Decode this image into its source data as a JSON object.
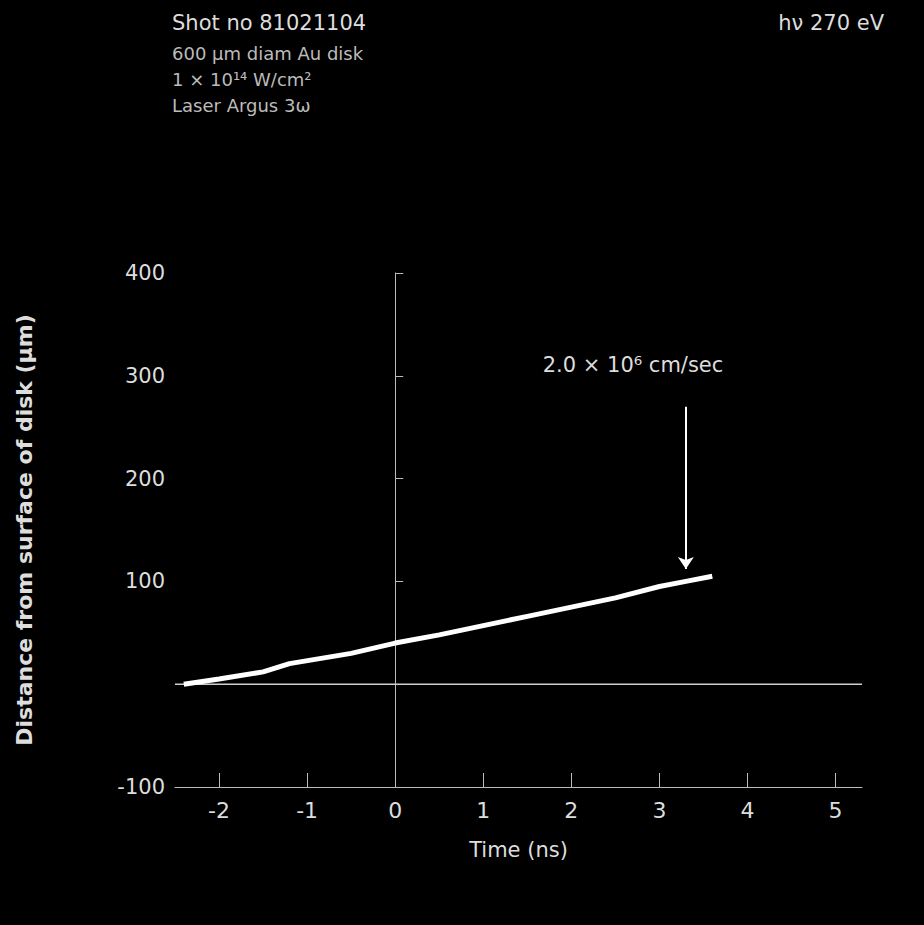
{
  "chart_data": {
    "type": "line",
    "title": "Shot no 81021104",
    "subtitle": "hν 270 eV",
    "notes": [
      "600 μm diam Au disk",
      "1 × 10¹⁴ W/cm²",
      "Laser Argus 3ω"
    ],
    "x_label": "Time (ns)",
    "y_label": "Distance from surface of disk (μm)",
    "xlim": [
      -2.5,
      5.3
    ],
    "xticks": [
      {
        "value": -2,
        "label": "-2"
      },
      {
        "value": -1,
        "label": "-1"
      },
      0,
      1,
      2,
      3,
      4,
      5
    ],
    "ylim": [
      -100,
      400
    ],
    "yticks": [
      -100,
      100,
      200,
      300,
      400
    ],
    "grid": false,
    "series": [
      {
        "x": [
          -2.4,
          -2.0,
          -1.5,
          -1.2,
          -0.5,
          0,
          0.5,
          1,
          1.5,
          2,
          2.5,
          3,
          3.3,
          3.6
        ],
        "values": [
          0,
          5,
          12,
          20,
          30,
          40,
          48,
          57,
          66,
          75,
          84,
          95,
          100,
          105
        ],
        "color": "#ffffff",
        "line_style": "solid"
      },
      {
        "x": [
          -2.5,
          5.3
        ],
        "values": [
          0,
          0
        ],
        "color": "#cfcfcf",
        "line_style": "solid"
      }
    ],
    "annotation": {
      "text": "2.0 × 10⁶ cm/sec",
      "x": 2.7,
      "y": 300,
      "arrow": [
        [
          3.3,
          270
        ],
        [
          3.3,
          112
        ]
      ]
    }
  }
}
